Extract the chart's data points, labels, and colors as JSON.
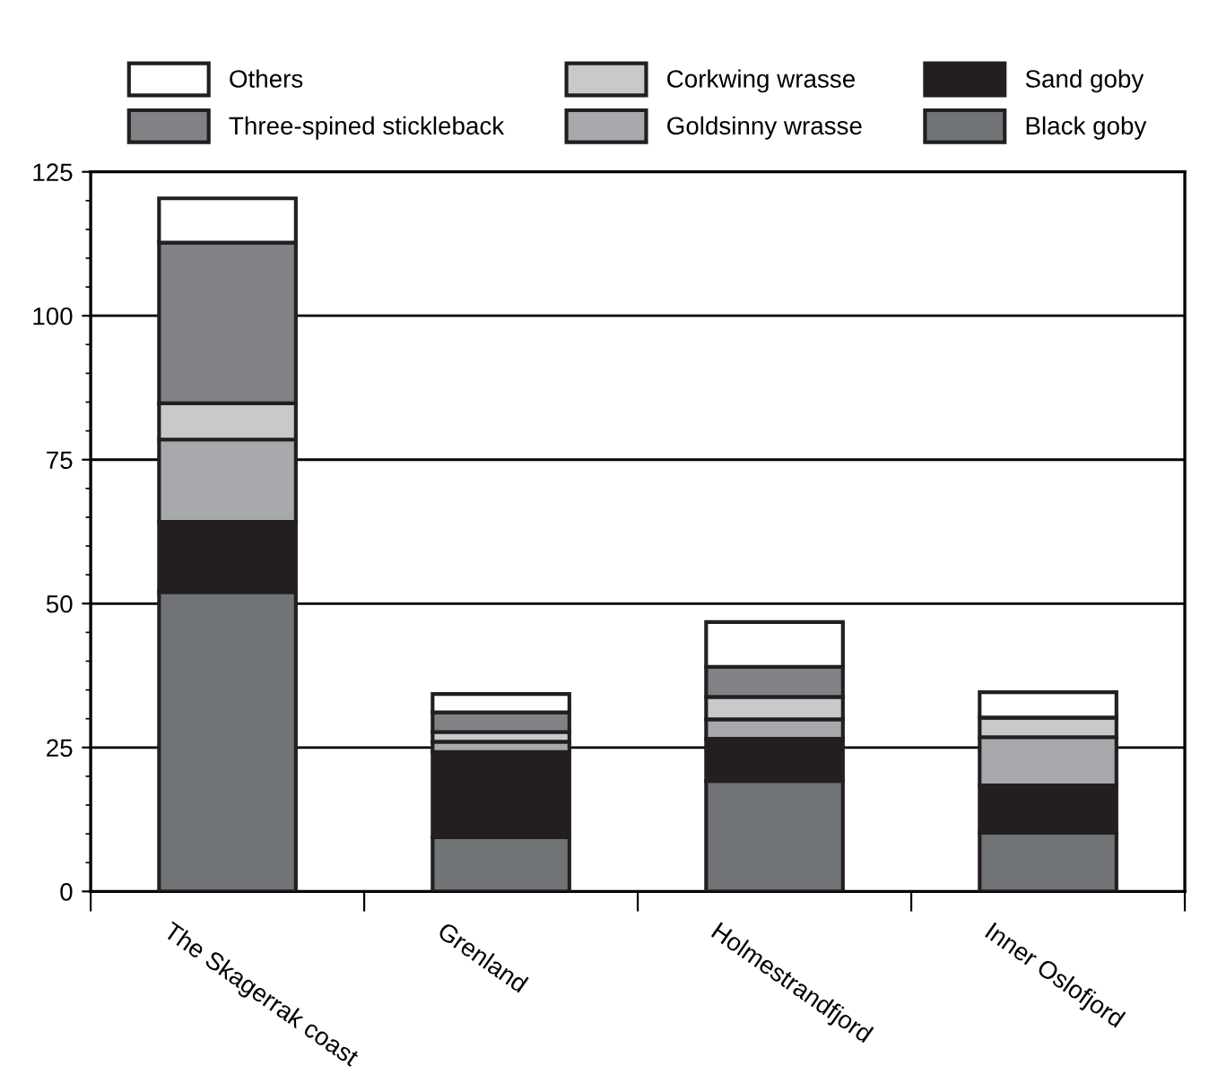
{
  "chart_data": {
    "type": "bar",
    "stacked": true,
    "categories": [
      "The Skagerrak coast",
      "Grenland",
      "Holmestrandfjord",
      "Inner Oslofjord"
    ],
    "series": [
      {
        "name": "Black goby",
        "color": "#707476",
        "values": [
          52,
          9.4,
          19.2,
          10.2
        ]
      },
      {
        "name": "Sand goby",
        "color": "#231f20",
        "values": [
          12.2,
          14.8,
          7.3,
          8.2
        ]
      },
      {
        "name": "Goldsinny wrasse",
        "color": "#a7a9ac",
        "values": [
          14.3,
          1.8,
          3.4,
          8.4
        ]
      },
      {
        "name": "Corkwing wrasse",
        "color": "#c8c9cb",
        "values": [
          6.3,
          1.7,
          3.9,
          3.4
        ]
      },
      {
        "name": "Three-spined stickleback",
        "color": "#808285",
        "values": [
          27.9,
          3.4,
          5.2,
          0
        ]
      },
      {
        "name": "Others",
        "color": "#ffffff",
        "values": [
          7.7,
          3.2,
          7.8,
          4.4
        ]
      }
    ],
    "ylim": [
      0,
      125
    ],
    "yticks": [
      0,
      25,
      50,
      75,
      100,
      125
    ],
    "grid": "y",
    "legend": "top"
  }
}
